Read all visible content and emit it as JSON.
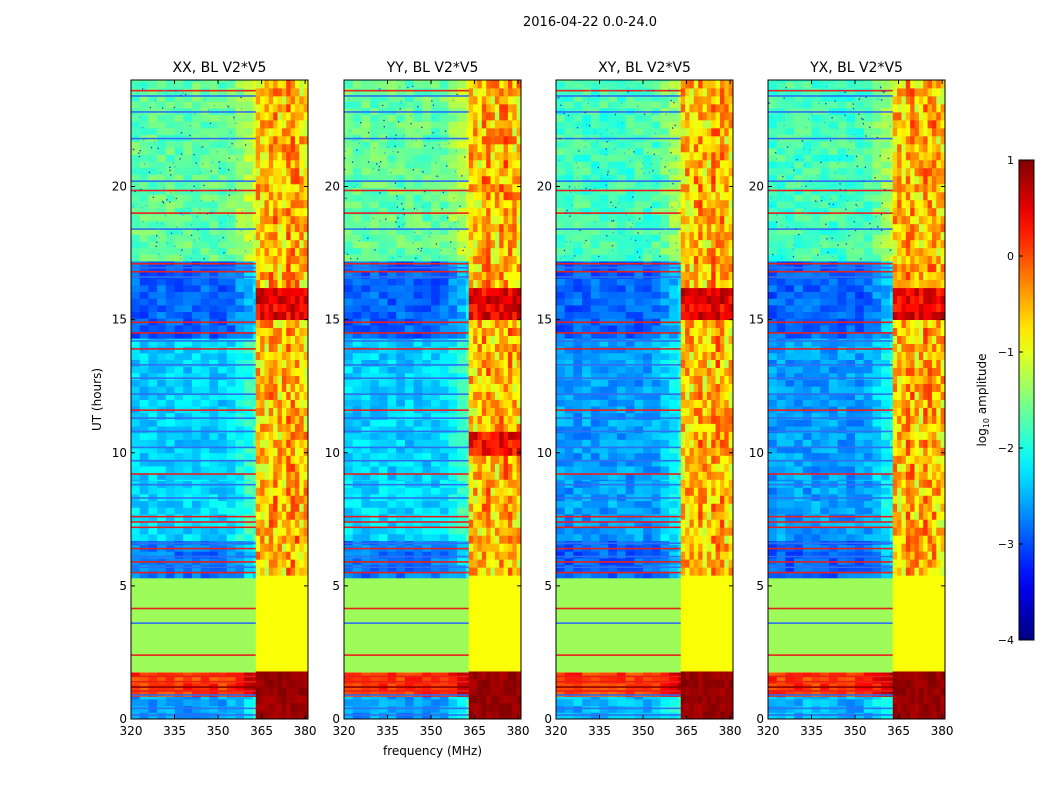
{
  "figure": {
    "suptitle": "2016-04-22 0.0-24.0",
    "colors": {
      "quiet_green": "#9dfc5a",
      "background_blue": "#2f6ff2",
      "rfi_red": "#e8201c",
      "rfi_yellow": "#f6e33b",
      "deep_red": "#8a0000"
    }
  },
  "chart_data": [
    {
      "type": "heatmap",
      "title": "XX, BL V2*V5",
      "xlabel": "",
      "ylabel": "UT (hours)",
      "xlim": [
        320,
        381
      ],
      "ylim": [
        0,
        24
      ],
      "xticks": [
        320,
        335,
        350,
        365,
        380
      ],
      "yticks": [
        0,
        5,
        10,
        15,
        20
      ],
      "ytick_labels": [
        "0",
        "5",
        "10",
        "15",
        "20"
      ],
      "colormap": "jet",
      "rfi_band_mhz": [
        363,
        381
      ],
      "quiet_block_hours": [
        1.8,
        5.3
      ]
    },
    {
      "type": "heatmap",
      "title": "YY, BL V2*V5",
      "xlabel": "frequency (MHz)",
      "ylabel": "",
      "xlim": [
        320,
        381
      ],
      "ylim": [
        0,
        24
      ],
      "xticks": [
        320,
        335,
        350,
        365,
        380
      ],
      "yticks": [
        0,
        5,
        10,
        15,
        20
      ],
      "ytick_labels": [
        "0",
        "5",
        "10",
        "15",
        "20"
      ],
      "colormap": "jet",
      "rfi_band_mhz": [
        363,
        381
      ],
      "quiet_block_hours": [
        1.8,
        5.3
      ]
    },
    {
      "type": "heatmap",
      "title": "XY, BL V2*V5",
      "xlabel": "",
      "ylabel": "",
      "xlim": [
        320,
        381
      ],
      "ylim": [
        0,
        24
      ],
      "xticks": [
        320,
        335,
        350,
        365,
        380
      ],
      "yticks": [
        0,
        5,
        10,
        15,
        20
      ],
      "ytick_labels": [
        "0",
        "5",
        "10",
        "15",
        "20"
      ],
      "colormap": "jet",
      "rfi_band_mhz": [
        363,
        381
      ],
      "quiet_block_hours": [
        1.8,
        5.3
      ]
    },
    {
      "type": "heatmap",
      "title": "YX, BL V2*V5",
      "xlabel": "",
      "ylabel": "",
      "xlim": [
        320,
        381
      ],
      "ylim": [
        0,
        24
      ],
      "xticks": [
        320,
        335,
        350,
        365,
        380
      ],
      "yticks": [
        0,
        5,
        10,
        15,
        20
      ],
      "ytick_labels": [
        "0",
        "5",
        "10",
        "15",
        "20"
      ],
      "colormap": "jet",
      "rfi_band_mhz": [
        363,
        381
      ],
      "quiet_block_hours": [
        1.8,
        5.3
      ]
    }
  ],
  "colorbar": {
    "label": "log₁₀ amplitude",
    "label_prefix": "log",
    "label_sub": "10",
    "label_suffix": " amplitude",
    "vmin": -4,
    "vmax": 1,
    "ticks": [
      1,
      0,
      -1,
      -2,
      -3,
      -4
    ],
    "tick_labels": [
      "1",
      "0",
      "−1",
      "−2",
      "−3",
      "−4"
    ]
  }
}
